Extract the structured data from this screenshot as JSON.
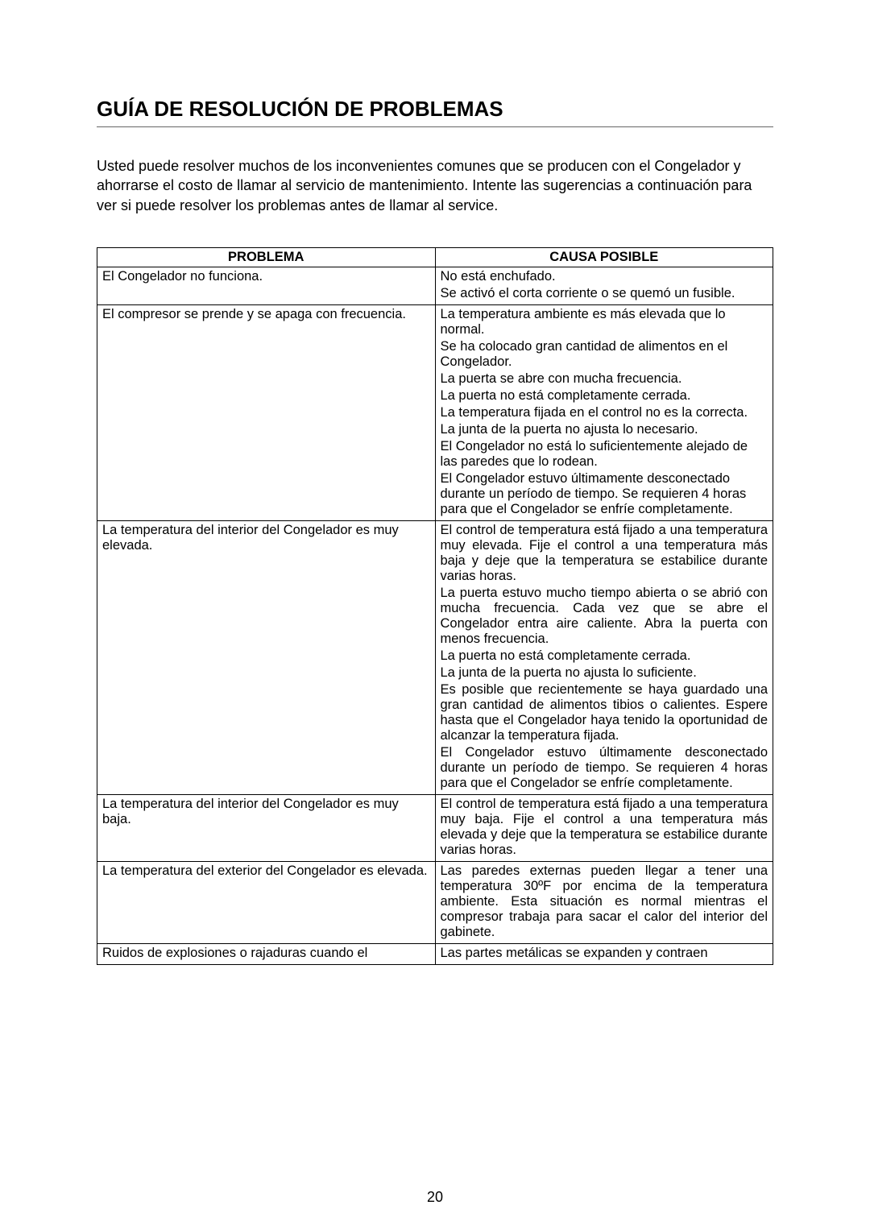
{
  "title": "GUÍA DE RESOLUCIÓN DE PROBLEMAS",
  "intro": "Usted puede resolver muchos de los inconvenientes comunes que se producen con el Congelador y ahorrarse el costo de llamar al servicio de mantenimiento. Intente las sugerencias a continuación para ver si puede resolver los problemas antes de llamar al service.",
  "headers": {
    "problem": "PROBLEMA",
    "cause": "CAUSA POSIBLE"
  },
  "rows": [
    {
      "problem": "El Congelador no funciona.",
      "causes": [
        "No está enchufado.",
        "Se activó el corta corriente o se quemó un fusible."
      ],
      "justify": false
    },
    {
      "problem": "El compresor se prende y se apaga con frecuencia.",
      "causes": [
        "La temperatura ambiente es más elevada que lo normal.",
        "Se ha colocado gran cantidad de alimentos en el Congelador.",
        "La puerta se abre con mucha frecuencia.",
        "La puerta no está completamente cerrada.",
        "La temperatura fijada en el control no es la correcta.",
        "La junta de la puerta no ajusta lo necesario.",
        "El Congelador no está lo suficientemente alejado de las paredes que lo rodean.",
        "El Congelador estuvo últimamente desconectado durante un período de tiempo. Se requieren 4 horas para que el Congelador se enfríe completamente."
      ],
      "justify": false
    },
    {
      "problem": "La temperatura del interior del Congelador es muy elevada.",
      "causes": [
        "El control de temperatura está fijado a una temperatura muy elevada. Fije el control a  una temperatura más baja y deje que la temperatura se estabilice durante varias horas.",
        "La puerta estuvo mucho tiempo abierta o se abrió con mucha frecuencia. Cada vez que se abre el Congelador entra aire caliente. Abra la puerta con menos frecuencia.",
        "La puerta no está completamente cerrada.",
        "La junta de la puerta no ajusta lo suficiente.",
        "Es posible que recientemente se haya guardado una gran cantidad de alimentos tibios o calientes. Espere hasta que el Congelador haya tenido la oportunidad de alcanzar la temperatura fijada.",
        "El Congelador estuvo últimamente desconectado durante un período de tiempo.  Se requieren 4 horas para que el Congelador se enfríe completamente."
      ],
      "justify": true
    },
    {
      "problem": "La temperatura del interior del Congelador es muy baja.",
      "causes": [
        "El control de temperatura está fijado a una temperatura muy baja.  Fije el control a  una temperatura más elevada y deje que la temperatura se estabilice durante varias horas."
      ],
      "justify": true
    },
    {
      "problem": "La temperatura del exterior del Congelador es elevada.",
      "causes": [
        "Las paredes externas pueden llegar a tener una temperatura 30ºF por encima de la temperatura ambiente. Esta situación es normal mientras el compresor trabaja para sacar el calor del interior del gabinete."
      ],
      "justify": true
    },
    {
      "problem": "Ruidos de explosiones o rajaduras cuando el",
      "causes": [
        "Las partes metálicas se expanden y contraen"
      ],
      "justify": true
    }
  ],
  "page_number": "20"
}
